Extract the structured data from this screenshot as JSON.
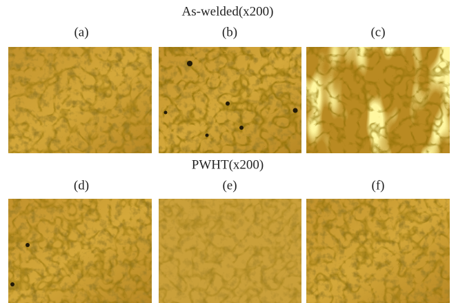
{
  "sections": [
    {
      "title": "As-welded(x200)",
      "panels": [
        {
          "label": "(a)"
        },
        {
          "label": "(b)"
        },
        {
          "label": "(c)"
        }
      ]
    },
    {
      "title": "PWHT(x200)",
      "panels": [
        {
          "label": "(d)"
        },
        {
          "label": "(e)"
        },
        {
          "label": "(f)"
        }
      ]
    }
  ]
}
